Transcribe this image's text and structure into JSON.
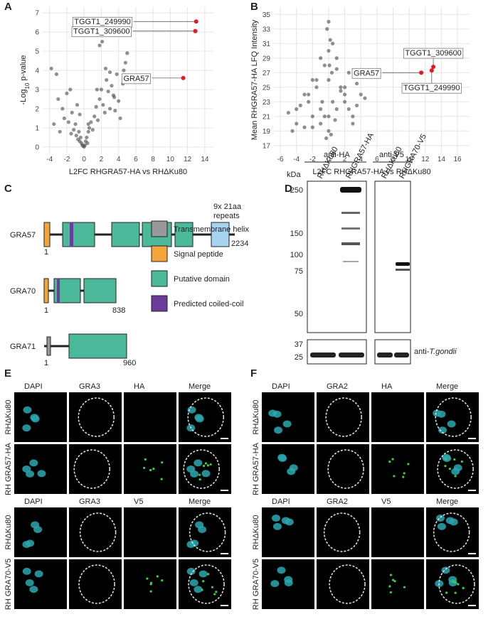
{
  "chart_data": [
    {
      "type": "scatter",
      "xlabel": "L2FC RHGRA57-HA vs RHΔKu80",
      "ylabel": {
        "prefix": "-Log",
        "sub": "10",
        "suffix": " p-value"
      },
      "x": [
        -3.8,
        -3.5,
        -3.2,
        -3,
        -2.8,
        -2.5,
        -2.3,
        -2,
        -1.8,
        -1.6,
        -1.4,
        -1.2,
        -1,
        -0.9,
        -0.8,
        -0.7,
        -0.6,
        -0.5,
        -0.4,
        -0.3,
        -0.2,
        -0.1,
        0,
        0.1,
        0.2,
        0.3,
        0.4,
        0.5,
        0.6,
        0.8,
        1,
        1.2,
        1.4,
        1.6,
        1.8,
        2,
        2.2,
        2.4,
        2.6,
        2.8,
        3,
        3.2,
        3.4,
        3.6,
        3.8,
        4,
        4.2,
        4.5,
        4.8,
        5,
        -0.5,
        0.5,
        1.5,
        2.5,
        3.5,
        -1.5,
        2.1,
        1.8,
        3,
        4.6
      ],
      "values": [
        4.1,
        1.2,
        3.8,
        2.5,
        0.8,
        2,
        1.5,
        2.8,
        1.3,
        3,
        1.8,
        0.9,
        1.2,
        0.6,
        2.2,
        0.4,
        0.8,
        0.3,
        0.5,
        0.2,
        0.1,
        0.05,
        0.02,
        0.1,
        0.3,
        0.5,
        0.2,
        0.8,
        1,
        1.3,
        0.9,
        1.6,
        2.1,
        1.4,
        2.5,
        3,
        2.2,
        1.8,
        3.5,
        2.9,
        2,
        3.2,
        2.7,
        1.9,
        3.8,
        2.4,
        1.5,
        3.3,
        4.4,
        4.9,
        1.7,
        1.2,
        3,
        4.1,
        2.6,
        0.7,
        5.5,
        5.3,
        3.9,
        4
      ],
      "color": "#555555",
      "highlights": [
        {
          "label": "TGGT1_249990",
          "x": 13,
          "y": 6.55
        },
        {
          "label": "TGGT1_309600",
          "x": 12.9,
          "y": 6.05
        },
        {
          "label": "GRA57",
          "x": 11.5,
          "y": 3.6
        }
      ],
      "highlight_color": "#e41a1c",
      "xlim": [
        -4.8,
        15
      ],
      "ylim": [
        -0.3,
        7.3
      ],
      "xticks": [
        -4,
        -2,
        0,
        2,
        4,
        6,
        8,
        10,
        12,
        14
      ],
      "yticks": [
        0,
        1,
        2,
        3,
        4,
        5,
        6,
        7
      ],
      "grid": true
    },
    {
      "type": "scatter",
      "xlabel": "L2FC RHGRA57-HA vs RHΔKu80",
      "ylabel": {
        "prefix": "Mean RHGRA57-HA LFQ Intensity",
        "sub": "",
        "suffix": ""
      },
      "x": [
        -5,
        -4.5,
        -4,
        -3.5,
        -3,
        -2.5,
        -2,
        -1.5,
        -1,
        -0.5,
        0,
        0.5,
        1,
        1.5,
        2,
        2.5,
        3,
        3.5,
        4,
        4.5,
        -3,
        -2,
        -1,
        0,
        1,
        2,
        3,
        -0.5,
        0,
        0.5,
        -0.2,
        0.2,
        0,
        -1,
        1,
        -2,
        2,
        -0.3,
        0.3,
        0.1,
        -4,
        -1.5,
        1.5,
        0.8,
        -0.8,
        0,
        2.5,
        3.5,
        -2.5,
        0.4
      ],
      "values": [
        21.5,
        19,
        20,
        22.5,
        19.5,
        24,
        21,
        26,
        20,
        28,
        34,
        31,
        22,
        25,
        23,
        27,
        21,
        22.5,
        24,
        23.5,
        24,
        19.5,
        29,
        30,
        27.5,
        25,
        20,
        21,
        19,
        23,
        33,
        31.5,
        26,
        22,
        29,
        26,
        24,
        18,
        18.5,
        28,
        22,
        25,
        24.5,
        20.5,
        23,
        21,
        22,
        25.5,
        23,
        27
      ],
      "color": "#555555",
      "highlights": [
        {
          "label": "GRA57",
          "x": 11.5,
          "y": 27.0
        },
        {
          "label": "TGGT1_309600",
          "x": 13,
          "y": 27.8
        },
        {
          "label": "TGGT1_249990",
          "x": 12.8,
          "y": 27.3
        }
      ],
      "highlight_color": "#e41a1c",
      "xlim": [
        -6.8,
        17.5
      ],
      "ylim": [
        16,
        36
      ],
      "xticks": [
        -6,
        -4,
        -2,
        0,
        2,
        4,
        6,
        8,
        10,
        12,
        14,
        16
      ],
      "yticks": [
        17,
        19,
        21,
        23,
        25,
        27,
        29,
        31,
        33,
        35
      ],
      "grid": true
    }
  ],
  "panel_labels": [
    "A",
    "B",
    "C",
    "D",
    "E",
    "F"
  ],
  "domains": {
    "proteins": [
      {
        "name": "GRA57",
        "start": 1,
        "end": 2234,
        "note": [
          "9x 21aa",
          "repeats"
        ]
      },
      {
        "name": "GRA70",
        "start": 1,
        "end": 838
      },
      {
        "name": "GRA71",
        "start": 1,
        "end": 960
      }
    ],
    "legend": [
      "Transmembrane helix",
      "Signal peptide",
      "Putative domain",
      "Predicted coiled-coil"
    ]
  },
  "blot": {
    "groups": [
      {
        "antibody": "anti-HA",
        "lanes": [
          "RHΔKu80",
          "RHGRA57-HA"
        ]
      },
      {
        "antibody": "anti-V5",
        "lanes": [
          "RHΔKu80",
          "RHGRA70-V5"
        ]
      }
    ],
    "unit": "kDa",
    "markers": [
      250,
      150,
      100,
      75,
      50
    ],
    "loading_markers": [
      37,
      25
    ],
    "loading_label": "anti-",
    "loading_species": "T.gondii"
  },
  "microscopy": [
    {
      "columns": [
        "DAPI",
        "GRA3",
        "HA",
        "Merge"
      ],
      "rows": [
        "RHΔKu80",
        "RH GRA57-HA"
      ]
    },
    {
      "columns": [
        "DAPI",
        "GRA3",
        "V5",
        "Merge"
      ],
      "rows": [
        "RHΔKu80",
        "RH GRA70-V5"
      ]
    },
    {
      "columns": [
        "DAPI",
        "GRA2",
        "HA",
        "Merge"
      ],
      "rows": [
        "RHΔKu80",
        "RH GRA57-HA"
      ]
    },
    {
      "columns": [
        "DAPI",
        "GRA2",
        "V5",
        "Merge"
      ],
      "rows": [
        "RHΔKu80",
        "RH GRA70-V5"
      ]
    }
  ]
}
